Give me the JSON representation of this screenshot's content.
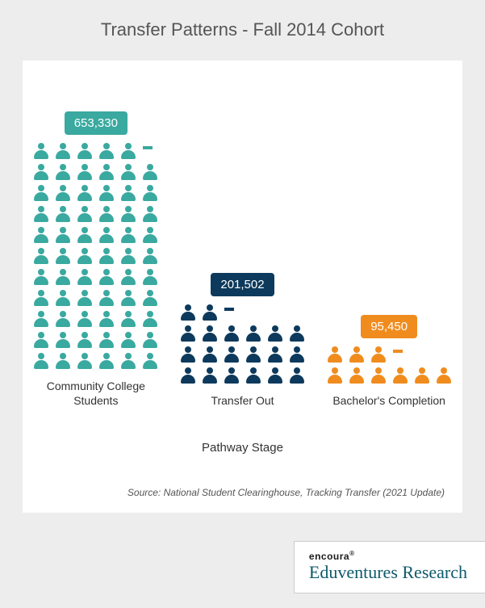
{
  "title": "Transfer Patterns - Fall 2014 Cohort",
  "title_color": "#555555",
  "title_fontsize": 22,
  "background_color": "#ededed",
  "card_color": "#ffffff",
  "axis_title": "Pathway Stage",
  "axis_title_color": "#333333",
  "source": "Source: National Student Clearinghouse, Tracking Transfer (2021 Update)",
  "source_color": "#555555",
  "xlabel_color": "#333333",
  "pictogram": {
    "type": "pictogram-bar",
    "icons_per_row": 6,
    "unit_value": 10000,
    "person_icon_name": "person-icon",
    "stages": [
      {
        "label": "Community College Students",
        "value": 653330,
        "value_text": "653,330",
        "color": "#3aa99f",
        "full_icons": 65,
        "partial": 0.33
      },
      {
        "label": "Transfer Out",
        "value": 201502,
        "value_text": "201,502",
        "color": "#0d3a5c",
        "full_icons": 20,
        "partial": 0.15
      },
      {
        "label": "Bachelor's Completion",
        "value": 95450,
        "value_text": "95,450",
        "color": "#f08c1e",
        "full_icons": 9,
        "partial": 0.55
      }
    ]
  },
  "brand": {
    "small": "encoura",
    "big": "Eduventures Research",
    "small_color": "#1a1a1a",
    "big_color": "#0d5a6b"
  }
}
